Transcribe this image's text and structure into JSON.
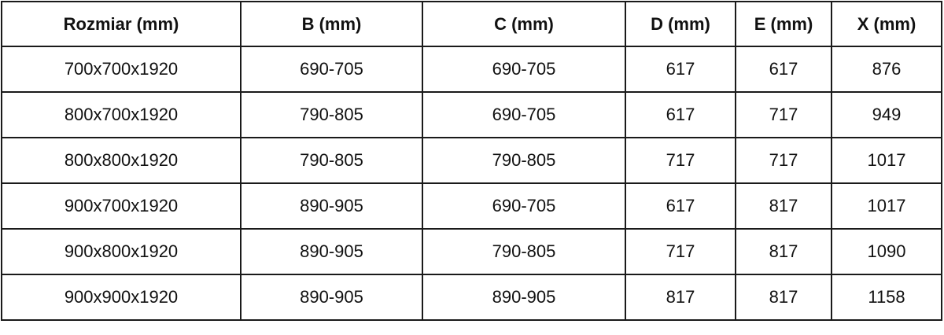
{
  "table": {
    "headers": [
      "Rozmiar (mm)",
      "B (mm)",
      "C (mm)",
      "D (mm)",
      "E (mm)",
      "X (mm)"
    ],
    "rows": [
      [
        "700x700x1920",
        "690-705",
        "690-705",
        "617",
        "617",
        "876"
      ],
      [
        "800x700x1920",
        "790-805",
        "690-705",
        "617",
        "717",
        "949"
      ],
      [
        "800x800x1920",
        "790-805",
        "790-805",
        "717",
        "717",
        "1017"
      ],
      [
        "900x700x1920",
        "890-905",
        "690-705",
        "617",
        "817",
        "1017"
      ],
      [
        "900x800x1920",
        "890-905",
        "790-805",
        "717",
        "817",
        "1090"
      ],
      [
        "900x900x1920",
        "890-905",
        "890-905",
        "817",
        "817",
        "1158"
      ]
    ]
  }
}
